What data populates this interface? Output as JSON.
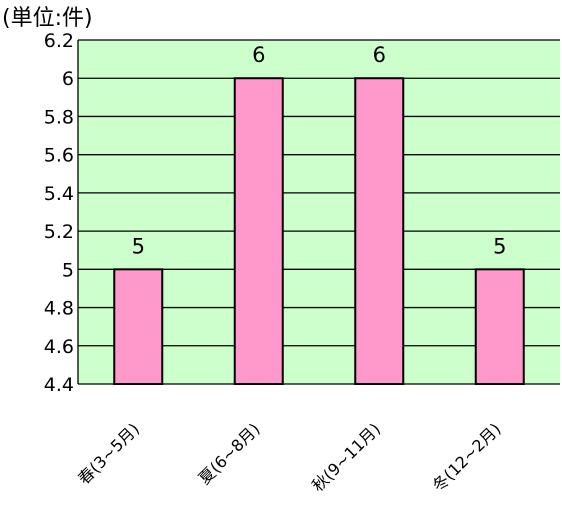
{
  "chart_data": {
    "type": "bar",
    "unit_label": "(単位:件)",
    "categories": [
      "春(3~5月)",
      "夏(6~8月)",
      "秋(9~11月)",
      "冬(12~2月)"
    ],
    "values": [
      5,
      6,
      6,
      5
    ],
    "data_labels": [
      "5",
      "6",
      "6",
      "5"
    ],
    "ylim": [
      4.4,
      6.2
    ],
    "y_ticks": [
      "6.2",
      "6",
      "5.8",
      "5.6",
      "5.4",
      "5.2",
      "5",
      "4.8",
      "4.6",
      "4.4"
    ],
    "grid": true,
    "legend": "none",
    "colors": {
      "plot_background": "#ccffcc",
      "bar_fill": "#ff99cc",
      "bar_stroke": "#000000",
      "gridline": "#000000"
    }
  }
}
